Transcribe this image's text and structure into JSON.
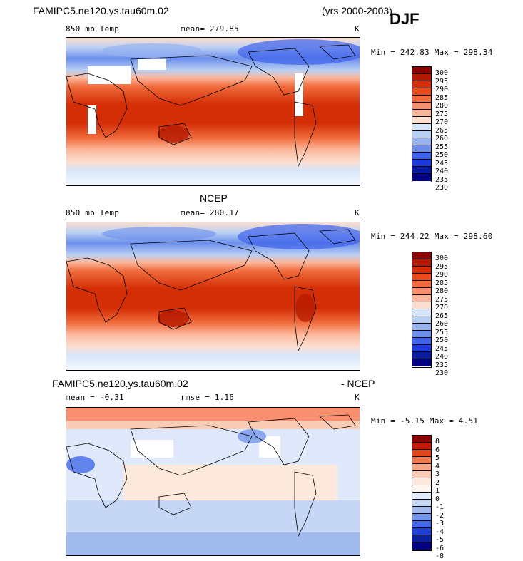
{
  "header": {
    "case_title": "FAMIPC5.ne120.ys.tau60m.02",
    "years": "(yrs 2000-2003)",
    "season": "DJF"
  },
  "panel1": {
    "field": "850 mb Temp",
    "mean": "mean= 279.85",
    "units": "K",
    "minmax": "Min = 242.83 Max = 298.34",
    "levels": [
      "300",
      "295",
      "290",
      "285",
      "280",
      "275",
      "270",
      "265",
      "260",
      "255",
      "250",
      "245",
      "240",
      "235",
      "230"
    ]
  },
  "panel2": {
    "title": "NCEP",
    "field": "850 mb Temp",
    "mean": "mean= 280.17",
    "units": "K",
    "minmax": "Min = 244.22 Max = 298.60",
    "levels": [
      "300",
      "295",
      "290",
      "285",
      "280",
      "275",
      "270",
      "265",
      "260",
      "255",
      "250",
      "245",
      "240",
      "235",
      "230"
    ]
  },
  "panel3": {
    "title_left": "FAMIPC5.ne120.ys.tau60m.02",
    "title_right": "- NCEP",
    "mean": "mean =  -0.31",
    "rmse": "rmse =   1.16",
    "units": "K",
    "minmax": "Min =  -5.15 Max =   4.51",
    "levels": [
      "8",
      "6",
      "5",
      "4",
      "3",
      "2",
      "1",
      "0",
      "-1",
      "-2",
      "-3",
      "-4",
      "-5",
      "-6",
      "-8"
    ]
  },
  "colors": {
    "abs_scale": [
      "#8b0000",
      "#b31800",
      "#d42e06",
      "#e84a1c",
      "#f06c3c",
      "#f89070",
      "#fbb79c",
      "#fcded0",
      "#d6e6fa",
      "#b8cff4",
      "#96b2ef",
      "#6c8fec",
      "#3f63ea",
      "#1c3ad8",
      "#0a1c9e",
      "#000080"
    ],
    "diff_scale": [
      "#8b0000",
      "#c21a00",
      "#e2461b",
      "#f07a50",
      "#f8a688",
      "#fbccb4",
      "#fde8dc",
      "#fff4ee",
      "#e2ecfb",
      "#c6d6f5",
      "#a2bbef",
      "#7296ec",
      "#4469e8",
      "#2041d8",
      "#0a1f9e",
      "#000080"
    ]
  }
}
